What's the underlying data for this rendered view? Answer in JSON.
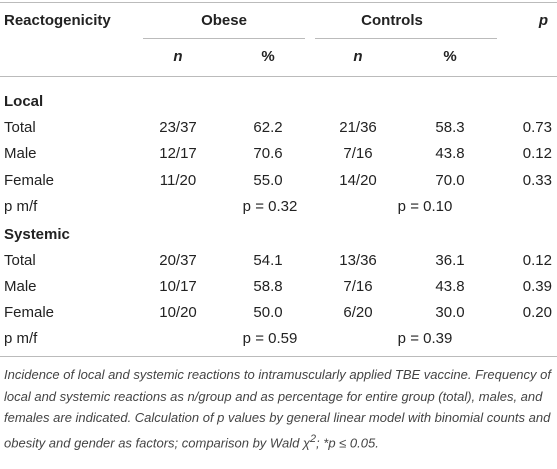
{
  "table": {
    "header": {
      "columns": [
        "Reactogenicity",
        "Obese",
        "Controls",
        "p"
      ],
      "subcolumns": [
        "n",
        "%",
        "n",
        "%"
      ]
    },
    "sections": [
      {
        "title": "Local",
        "rows": [
          [
            "Total",
            "23/37",
            "62.2",
            "21/36",
            "58.3",
            "0.73"
          ],
          [
            "Male",
            "12/17",
            "70.6",
            "7/16",
            "43.8",
            "0.12"
          ],
          [
            "Female",
            "11/20",
            "55.0",
            "14/20",
            "70.0",
            "0.33"
          ]
        ],
        "pmf": {
          "label": "p m/f",
          "obese": "p = 0.32",
          "controls": "p = 0.10"
        }
      },
      {
        "title": "Systemic",
        "rows": [
          [
            "Total",
            "20/37",
            "54.1",
            "13/36",
            "36.1",
            "0.12"
          ],
          [
            "Male",
            "10/17",
            "58.8",
            "7/16",
            "43.8",
            "0.39"
          ],
          [
            "Female",
            "10/20",
            "50.0",
            "6/20",
            "30.0",
            "0.20"
          ]
        ],
        "pmf": {
          "label": "p m/f",
          "obese": "p = 0.59",
          "controls": "p = 0.39"
        }
      }
    ]
  },
  "footnote": [
    "Incidence of local and systemic reactions to intramuscularly applied TBE vaccine. Frequency of local and systemic reactions as n/group and as percentage for entire group (total), males, and females are indicated. Calculation of p values by general linear model with binomial counts and obesity and gender as factors; comparison by Wald χ",
    "2",
    "; *p ≤ 0.05."
  ]
}
